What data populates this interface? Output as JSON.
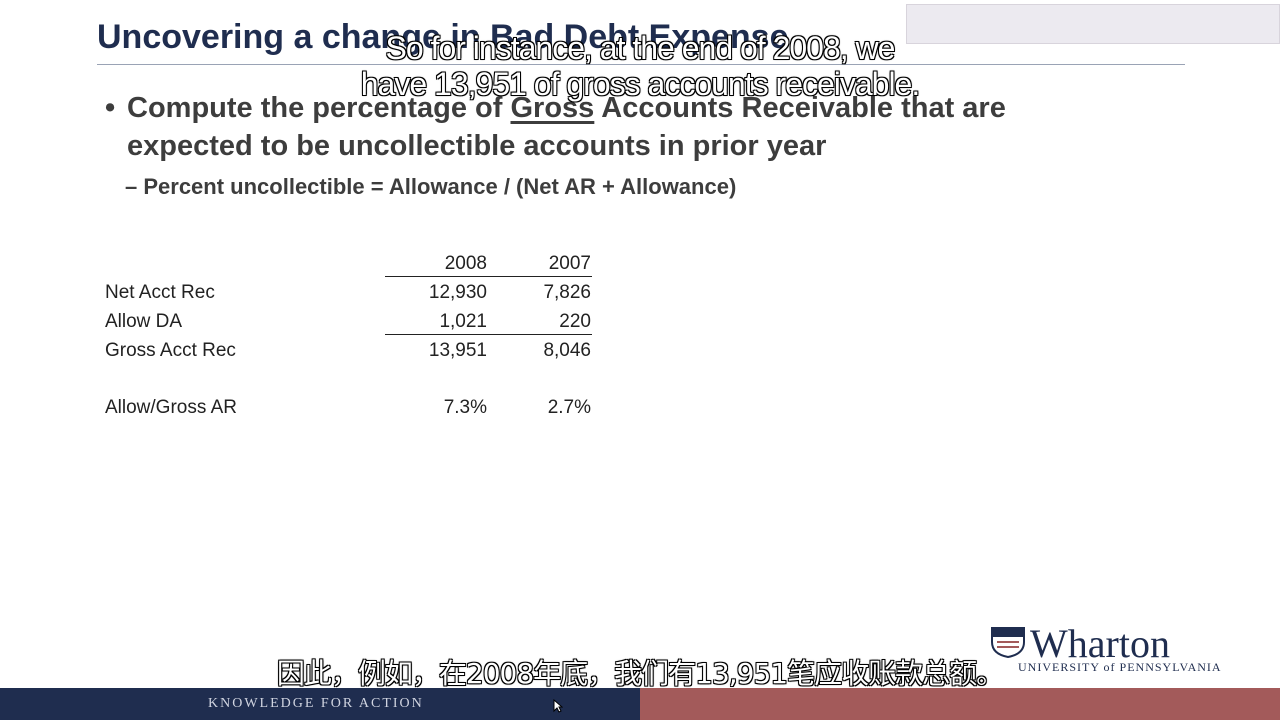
{
  "slide": {
    "title": "Uncovering a change in Bad Debt Expense",
    "bullet_pre": "Compute the percentage of ",
    "bullet_underlined": "Gross",
    "bullet_post": " Accounts Receivable that are expected to be uncollectible accounts in prior year",
    "sub_bullet": "– Percent uncollectible = Allowance / (Net AR + Allowance)"
  },
  "table": {
    "headers": [
      "2008",
      "2007"
    ],
    "rows": [
      {
        "label": "Net Acct Rec",
        "v2008": "12,930",
        "v2007": "7,826"
      },
      {
        "label": "Allow DA",
        "v2008": "1,021",
        "v2007": "220"
      },
      {
        "label": "Gross Acct Rec",
        "v2008": "13,951",
        "v2007": "8,046"
      },
      {
        "label": "Allow/Gross AR",
        "v2008": "7.3%",
        "v2007": "2.7%"
      }
    ]
  },
  "subtitles": {
    "english_line1": "So for instance, at the end of 2008, we",
    "english_line2": "have 13,951 of gross accounts receivable.",
    "chinese": "因此，例如，在2008年底，我们有13,951笔应收账款总额。"
  },
  "branding": {
    "logo_name": "Wharton",
    "logo_subtitle": "UNIVERSITY of PENNSYLVANIA",
    "footer_tagline": "KNOWLEDGE FOR ACTION"
  },
  "colors": {
    "title": "#1f2d4f",
    "footer_left": "#1f2d4f",
    "footer_right": "#a35a5a"
  }
}
